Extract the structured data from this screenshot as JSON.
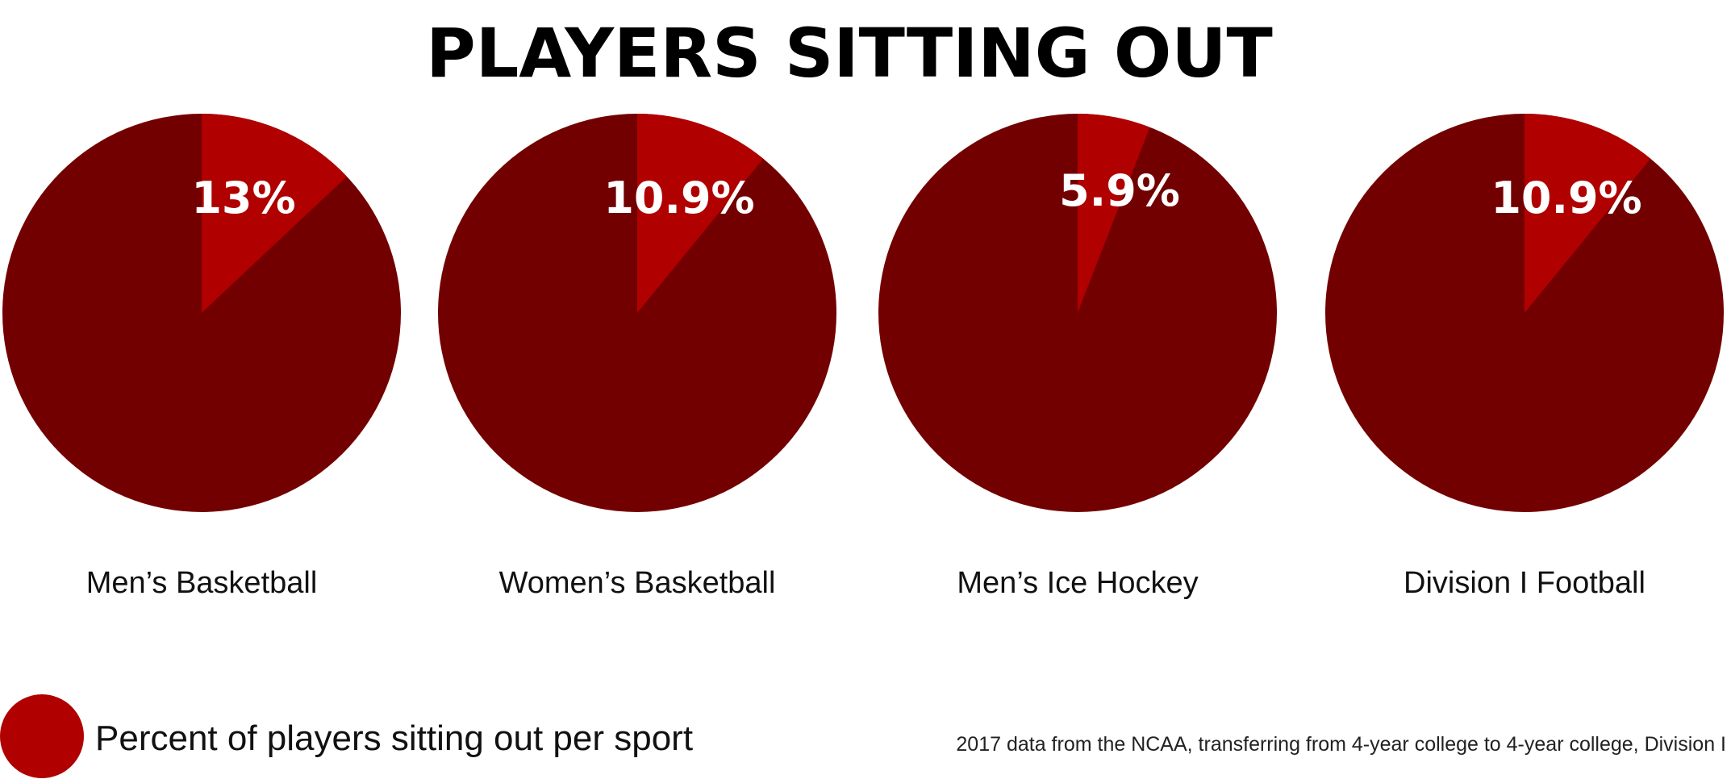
{
  "chart_data": {
    "type": "pie",
    "title": "PLAYERS SITTING OUT",
    "charts": [
      {
        "category": "Men’s Basketball",
        "value": 13,
        "label": "13%"
      },
      {
        "category": "Women’s Basketball",
        "value": 10.9,
        "label": "10.9%"
      },
      {
        "category": "Men’s Ice Hockey",
        "value": 5.9,
        "label": "5.9%"
      },
      {
        "category": "Division I Football",
        "value": 10.9,
        "label": "10.9%"
      }
    ],
    "legend": {
      "label": "Percent of players sitting out per sport",
      "placement": "bottom-left"
    },
    "note": "2017 data from the NCAA, transferring from 4-year college to 4-year college, Division I",
    "colors": {
      "highlight": "#b00000",
      "rest": "#730000"
    }
  }
}
